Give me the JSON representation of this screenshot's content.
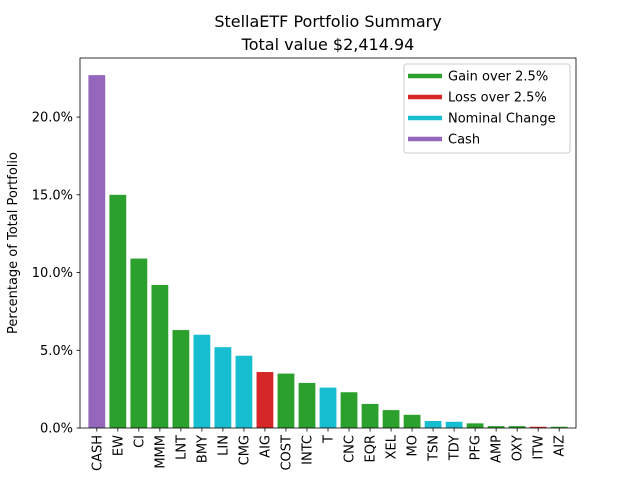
{
  "chart_data": {
    "type": "bar",
    "title": "StellaETF Portfolio Summary",
    "subtitle": "Total value $2,414.94",
    "xlabel": "",
    "ylabel": "Percentage of Total Portfolio",
    "ylim": [
      0,
      23.8
    ],
    "yticks": [
      0,
      5,
      10,
      15,
      20
    ],
    "ytick_labels": [
      "0.0%",
      "5.0%",
      "10.0%",
      "15.0%",
      "20.0%"
    ],
    "grid": false,
    "legend_position": "top-right",
    "legend": [
      {
        "label": "Gain over 2.5%",
        "color": "#2ca02c"
      },
      {
        "label": "Loss over 2.5%",
        "color": "#d62728"
      },
      {
        "label": "Nominal Change",
        "color": "#17becf"
      },
      {
        "label": "Cash",
        "color": "#9467bd"
      }
    ],
    "categories": [
      "CASH",
      "EW",
      "CI",
      "MMM",
      "LNT",
      "BMY",
      "LIN",
      "CMG",
      "AIG",
      "COST",
      "INTC",
      "T",
      "CNC",
      "EQR",
      "XEL",
      "MO",
      "TSN",
      "TDY",
      "PFG",
      "AMP",
      "OXY",
      "ITW",
      "AIZ"
    ],
    "values": [
      22.7,
      15.0,
      10.9,
      9.2,
      6.3,
      6.0,
      5.2,
      4.65,
      3.6,
      3.5,
      2.9,
      2.6,
      2.3,
      1.55,
      1.15,
      0.85,
      0.45,
      0.4,
      0.3,
      0.12,
      0.12,
      0.08,
      0.08
    ],
    "bar_colors": [
      "#9467bd",
      "#2ca02c",
      "#2ca02c",
      "#2ca02c",
      "#2ca02c",
      "#17becf",
      "#17becf",
      "#17becf",
      "#d62728",
      "#2ca02c",
      "#2ca02c",
      "#17becf",
      "#2ca02c",
      "#2ca02c",
      "#2ca02c",
      "#2ca02c",
      "#17becf",
      "#17becf",
      "#2ca02c",
      "#2ca02c",
      "#2ca02c",
      "#d62728",
      "#2ca02c"
    ]
  }
}
